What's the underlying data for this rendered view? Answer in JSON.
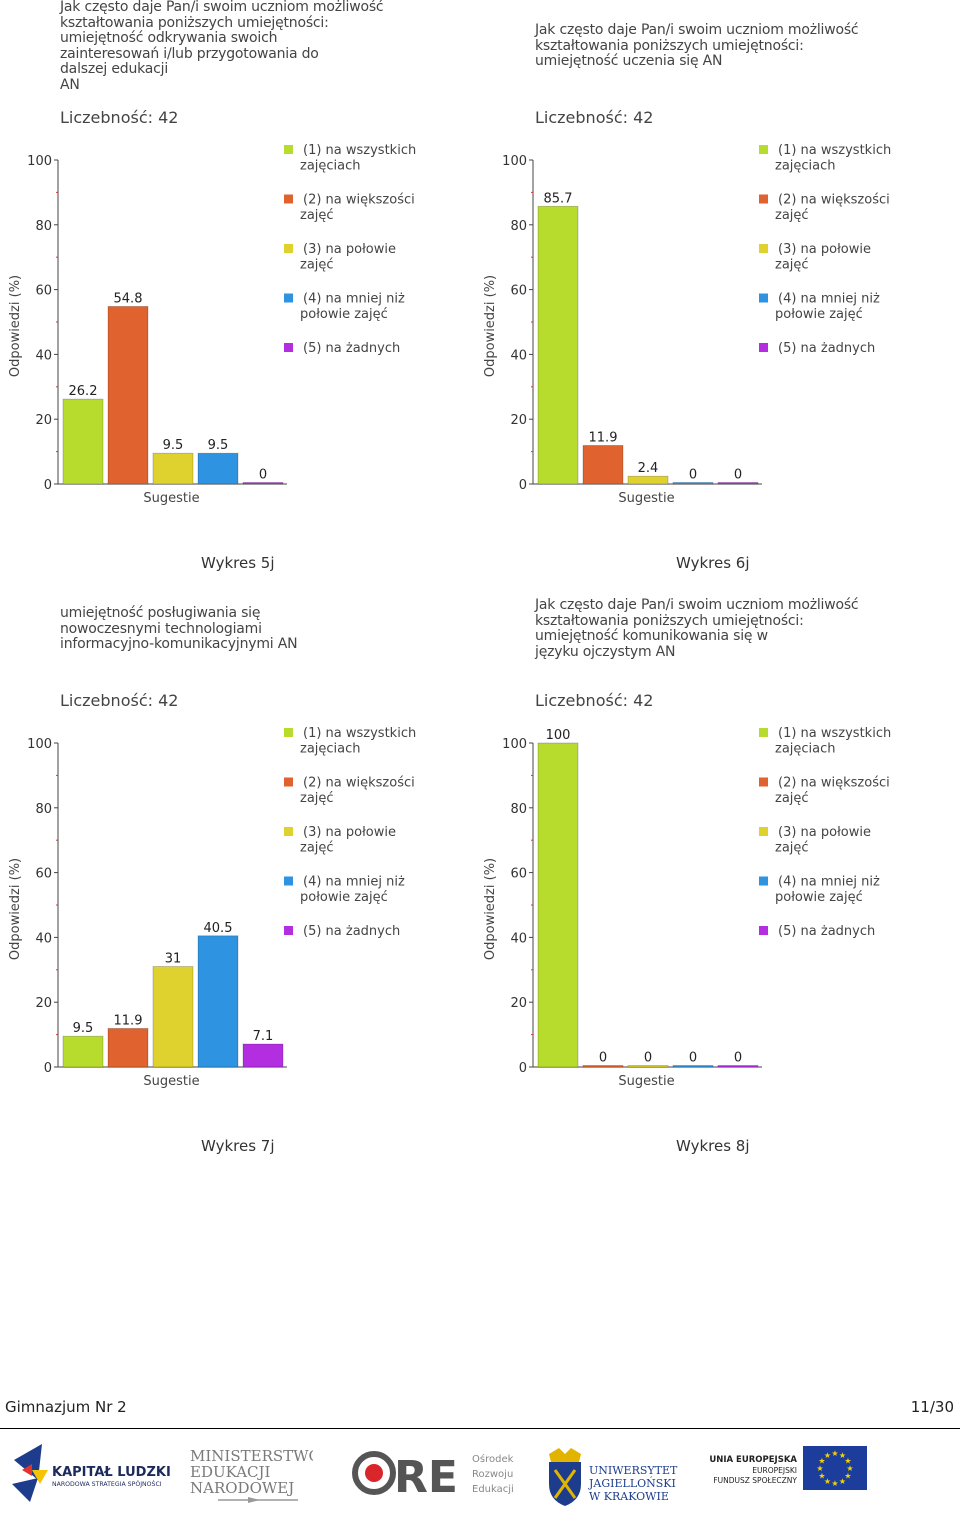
{
  "legend": [
    {
      "num": "(1)",
      "label": "na wszystkich zajęciach",
      "color": "#b8dc2e"
    },
    {
      "num": "(2)",
      "label": "na większości zajęć",
      "color": "#e0622e"
    },
    {
      "num": "(3)",
      "label": "na połowie zajęć",
      "color": "#e0d22e"
    },
    {
      "num": "(4)",
      "label": "na mniej niż połowie zajęć",
      "color": "#2e93e0"
    },
    {
      "num": "(5)",
      "label": "na żadnych",
      "color": "#b22ee0"
    }
  ],
  "charts": [
    {
      "title": "Jak często daje Pan/i swoim uczniom możliwość\nkształtowania poniższych umiejętności:\numiejętność odkrywania swoich\nzainteresowań i/lub przygotowania do\ndalszej edukacji\n AN",
      "count_label": "Liczebność: 42",
      "caption": "Wykres 5j"
    },
    {
      "title": "Jak często daje Pan/i swoim uczniom możliwość\nkształtowania poniższych umiejętności:\numiejętność uczenia się AN",
      "count_label": "Liczebność: 42",
      "caption": "Wykres 6j"
    },
    {
      "title": "umiejętność posługiwania się\nnowoczesnymi technologiami\ninformacyjno-komunikacyjnymi AN",
      "count_label": "Liczebność: 42",
      "caption": "Wykres 7j"
    },
    {
      "title": "Jak często daje Pan/i swoim uczniom możliwość\nkształtowania poniższych umiejętności:\numiejętność komunikowania się w\njęzyku ojczystym AN",
      "count_label": "Liczebność: 42",
      "caption": "Wykres 8j"
    }
  ],
  "chart_data": [
    {
      "type": "bar",
      "title": "Wykres 5j",
      "xlabel": "Sugestie",
      "ylabel": "Odpowiedzi (%)",
      "ylim": [
        0,
        100
      ],
      "yticks": [
        0,
        20,
        40,
        60,
        80,
        100
      ],
      "categories": [
        "(1)",
        "(2)",
        "(3)",
        "(4)",
        "(5)"
      ],
      "values": [
        26.2,
        54.8,
        9.5,
        9.5,
        0
      ],
      "labels": [
        "26.2",
        "54.8",
        "9.5",
        "9.5",
        "0"
      ]
    },
    {
      "type": "bar",
      "title": "Wykres 6j",
      "xlabel": "Sugestie",
      "ylabel": "Odpowiedzi (%)",
      "ylim": [
        0,
        100
      ],
      "yticks": [
        0,
        20,
        40,
        60,
        80,
        100
      ],
      "categories": [
        "(1)",
        "(2)",
        "(3)",
        "(4)",
        "(5)"
      ],
      "values": [
        85.7,
        11.9,
        2.4,
        0,
        0
      ],
      "labels": [
        "85.7",
        "11.9",
        "2.4",
        "0",
        "0"
      ]
    },
    {
      "type": "bar",
      "title": "Wykres 7j",
      "xlabel": "Sugestie",
      "ylabel": "Odpowiedzi (%)",
      "ylim": [
        0,
        100
      ],
      "yticks": [
        0,
        20,
        40,
        60,
        80,
        100
      ],
      "categories": [
        "(1)",
        "(2)",
        "(3)",
        "(4)",
        "(5)"
      ],
      "values": [
        9.5,
        11.9,
        31,
        40.5,
        7.1
      ],
      "labels": [
        "9.5",
        "11.9",
        "31",
        "40.5",
        "7.1"
      ]
    },
    {
      "type": "bar",
      "title": "Wykres 8j",
      "xlabel": "Sugestie",
      "ylabel": "Odpowiedzi (%)",
      "ylim": [
        0,
        100
      ],
      "yticks": [
        0,
        20,
        40,
        60,
        80,
        100
      ],
      "categories": [
        "(1)",
        "(2)",
        "(3)",
        "(4)",
        "(5)"
      ],
      "values": [
        100,
        0,
        0,
        0,
        0
      ],
      "labels": [
        "100",
        "0",
        "0",
        "0",
        "0"
      ]
    }
  ],
  "footer": {
    "school": "Gimnazjum Nr 2",
    "page": "11/30"
  },
  "logos": {
    "kapital": {
      "title": "KAPITAŁ LUDZKI",
      "subtitle": "NARODOWA STRATEGIA SPÓJNOŚCI"
    },
    "men": {
      "line1": "MINISTERSTWO",
      "line2": "EDUKACJI",
      "line3": "NARODOWEJ"
    },
    "ore": {
      "mark": "RE",
      "line1": "Ośrodek",
      "line2": "Rozwoju",
      "line3": "Edukacji"
    },
    "uj": {
      "line1": "UNIWERSYTET",
      "line2": "JAGIELLOŃSKI",
      "line3": "W KRAKOWIE"
    },
    "ue": {
      "line1": "UNIA EUROPEJSKA",
      "line2": "EUROPEJSKI",
      "line3": "FUNDUSZ SPOŁECZNY"
    }
  }
}
